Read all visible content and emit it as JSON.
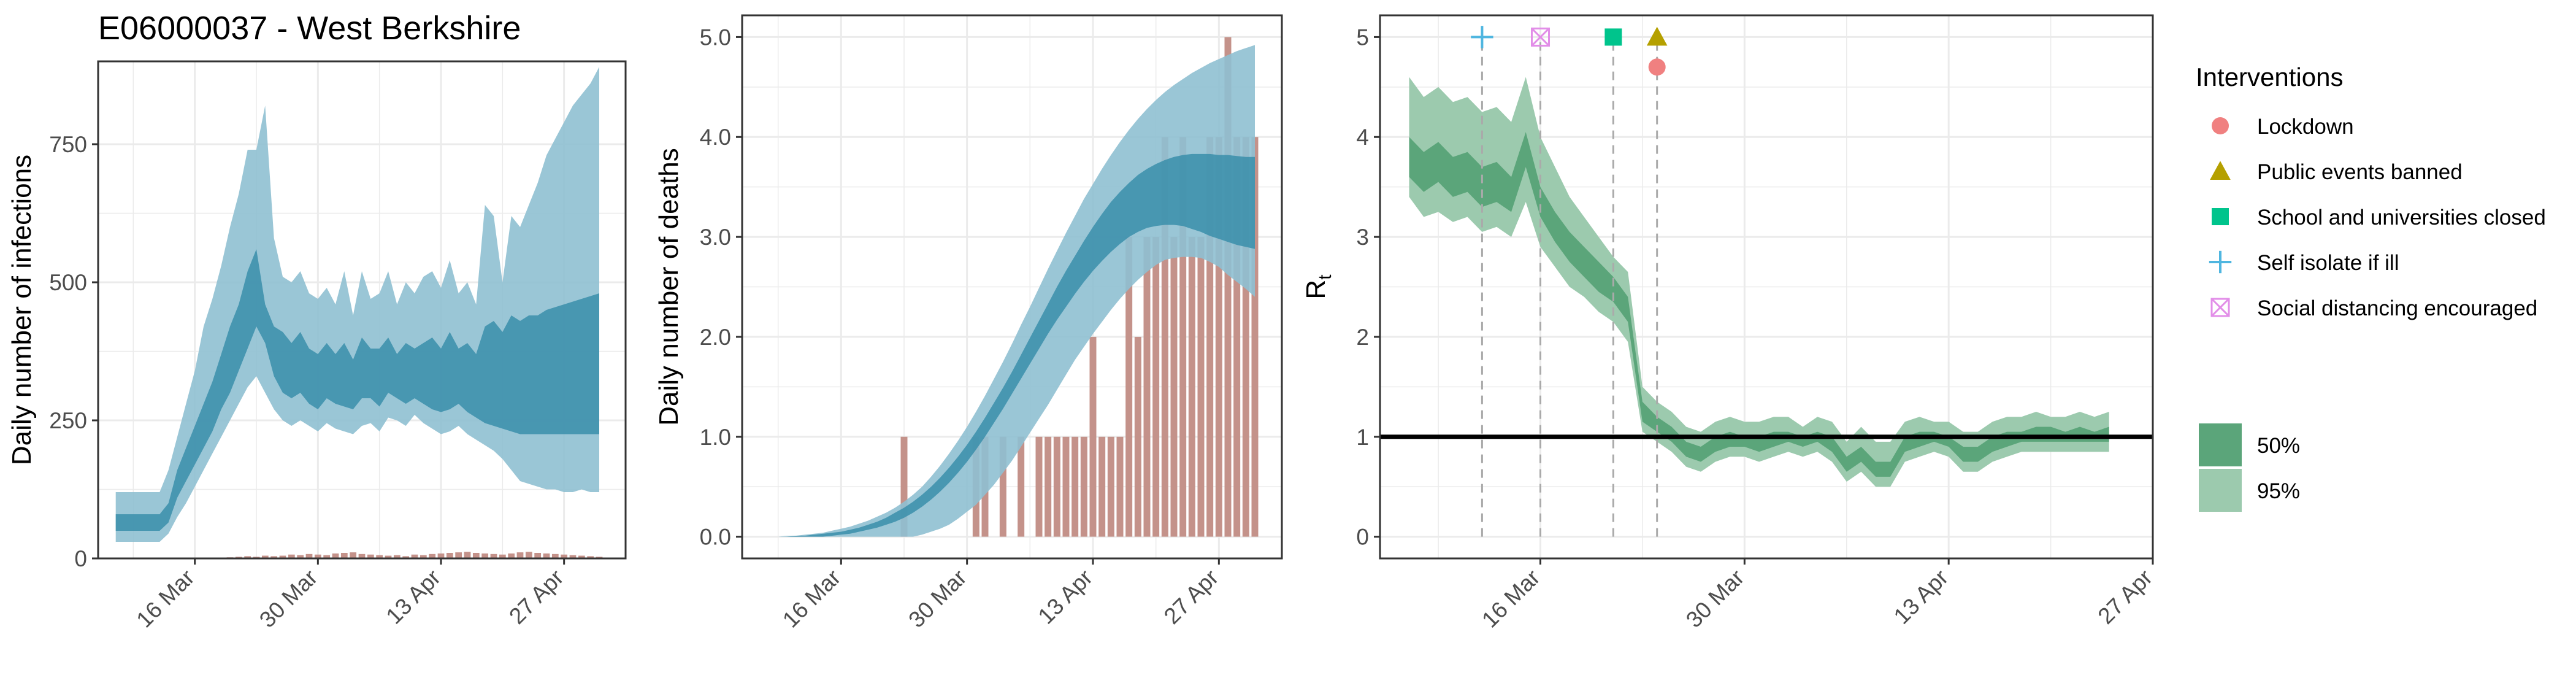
{
  "page": {
    "title": "E06000037 - West Berkshire"
  },
  "colors": {
    "infections_95": "#8fc0d1",
    "infections_50": "#3a8eaa",
    "deaths_95": "#8fc0d1",
    "deaths_50": "#3a8eaa",
    "bars": "#c4928a",
    "rt_95": "#9ccaae",
    "rt_50": "#5ba57a",
    "rt_line": "#000000",
    "vline": "#aaaaaa",
    "grid": "#ebebeb",
    "lockdown": "#f08080",
    "public_events": "#b5a000",
    "schools": "#00c48c",
    "self_isolate": "#4fb6e0",
    "social_distancing": "#e28ee8"
  },
  "chart_data": [
    {
      "type": "area",
      "name": "infections",
      "ylabel": "Daily number of infections",
      "x_start": "2020-03-07",
      "ylim": [
        0,
        900
      ],
      "yticks": [
        0,
        250,
        500,
        750
      ],
      "ytick_labels": [
        "0",
        "250",
        "500",
        "750"
      ],
      "xticks": [
        "2020-03-16",
        "2020-03-30",
        "2020-04-13",
        "2020-04-27"
      ],
      "xtick_labels": [
        "16 Mar",
        "30 Mar",
        "13 Apr",
        "27 Apr"
      ],
      "grid": true,
      "band95": {
        "lower": [
          30,
          30,
          30,
          30,
          30,
          30,
          45,
          75,
          100,
          130,
          160,
          190,
          220,
          250,
          280,
          310,
          330,
          300,
          270,
          250,
          240,
          250,
          240,
          230,
          245,
          235,
          230,
          225,
          240,
          245,
          230,
          255,
          250,
          240,
          260,
          245,
          235,
          225,
          230,
          240,
          225,
          215,
          205,
          195,
          180,
          160,
          140,
          135,
          130,
          125,
          125,
          120,
          120,
          125,
          120,
          120
        ],
        "upper": [
          120,
          120,
          120,
          120,
          120,
          120,
          160,
          220,
          280,
          340,
          420,
          470,
          530,
          600,
          660,
          740,
          740,
          820,
          580,
          510,
          500,
          520,
          480,
          470,
          490,
          460,
          520,
          440,
          520,
          470,
          480,
          520,
          460,
          500,
          480,
          510,
          520,
          490,
          540,
          480,
          500,
          460,
          640,
          620,
          500,
          620,
          600,
          640,
          680,
          730,
          760,
          790,
          820,
          840,
          860,
          890
        ]
      },
      "band50": {
        "lower": [
          50,
          50,
          50,
          50,
          50,
          50,
          65,
          110,
          140,
          170,
          200,
          230,
          270,
          300,
          340,
          380,
          420,
          390,
          330,
          300,
          290,
          300,
          280,
          270,
          290,
          280,
          275,
          270,
          290,
          290,
          275,
          300,
          290,
          280,
          290,
          280,
          270,
          265,
          270,
          280,
          265,
          255,
          245,
          240,
          235,
          230,
          225,
          225,
          225,
          225,
          225,
          225,
          225,
          225,
          225,
          225
        ],
        "upper": [
          80,
          80,
          80,
          80,
          80,
          80,
          100,
          160,
          200,
          240,
          280,
          320,
          370,
          420,
          460,
          520,
          560,
          460,
          420,
          410,
          390,
          410,
          380,
          370,
          390,
          370,
          390,
          360,
          400,
          380,
          380,
          400,
          370,
          390,
          380,
          390,
          400,
          380,
          410,
          380,
          390,
          370,
          420,
          430,
          410,
          440,
          430,
          440,
          440,
          450,
          455,
          460,
          465,
          470,
          475,
          480
        ]
      },
      "bars": [
        0,
        0,
        0,
        0,
        0,
        0,
        0,
        0,
        0,
        0,
        0,
        0,
        0,
        2,
        3,
        4,
        3,
        5,
        4,
        5,
        7,
        6,
        8,
        7,
        6,
        9,
        10,
        11,
        8,
        7,
        6,
        5,
        6,
        4,
        7,
        6,
        8,
        9,
        10,
        11,
        12,
        10,
        9,
        8,
        7,
        9,
        11,
        12,
        10,
        9,
        8,
        7,
        6,
        5,
        4,
        3
      ]
    },
    {
      "type": "area",
      "name": "deaths",
      "ylabel": "Daily number of deaths",
      "x_start": "2020-03-07",
      "ylim": [
        0,
        5
      ],
      "yticks": [
        0,
        1,
        2,
        3,
        4,
        5
      ],
      "ytick_labels": [
        "0.0",
        "1.0",
        "2.0",
        "3.0",
        "4.0",
        "5.0"
      ],
      "xticks": [
        "2020-03-16",
        "2020-03-30",
        "2020-04-13",
        "2020-04-27"
      ],
      "xtick_labels": [
        "16 Mar",
        "30 Mar",
        "13 Apr",
        "27 Apr"
      ],
      "grid": true,
      "band95": {
        "lower": [
          0,
          0,
          0,
          0,
          0,
          0,
          0,
          0,
          0,
          0,
          0,
          0,
          0,
          0,
          0,
          0,
          0,
          0,
          0.02,
          0.05,
          0.08,
          0.12,
          0.18,
          0.25,
          0.32,
          0.42,
          0.52,
          0.64,
          0.76,
          0.9,
          1.04,
          1.18,
          1.32,
          1.47,
          1.62,
          1.77,
          1.9,
          2.03,
          2.15,
          2.27,
          2.38,
          2.48,
          2.57,
          2.65,
          2.72,
          2.77,
          2.79,
          2.8,
          2.8,
          2.79,
          2.75,
          2.7,
          2.62,
          2.55,
          2.48,
          2.4
        ],
        "upper": [
          0,
          0,
          0,
          0.01,
          0.01,
          0.02,
          0.03,
          0.04,
          0.06,
          0.08,
          0.1,
          0.13,
          0.16,
          0.2,
          0.24,
          0.29,
          0.35,
          0.42,
          0.5,
          0.6,
          0.71,
          0.83,
          0.96,
          1.1,
          1.25,
          1.41,
          1.58,
          1.75,
          1.93,
          2.12,
          2.3,
          2.49,
          2.68,
          2.86,
          3.04,
          3.21,
          3.38,
          3.53,
          3.68,
          3.82,
          3.95,
          4.07,
          4.18,
          4.28,
          4.37,
          4.45,
          4.52,
          4.58,
          4.64,
          4.69,
          4.74,
          4.78,
          4.82,
          4.86,
          4.89,
          4.92
        ]
      },
      "band50": {
        "lower": [
          0,
          0,
          0,
          0,
          0,
          0,
          0,
          0,
          0.01,
          0.02,
          0.03,
          0.05,
          0.07,
          0.09,
          0.12,
          0.15,
          0.19,
          0.24,
          0.3,
          0.37,
          0.45,
          0.54,
          0.64,
          0.75,
          0.87,
          1.0,
          1.14,
          1.28,
          1.43,
          1.58,
          1.73,
          1.88,
          2.03,
          2.17,
          2.3,
          2.43,
          2.55,
          2.66,
          2.76,
          2.85,
          2.93,
          3.0,
          3.05,
          3.09,
          3.11,
          3.12,
          3.12,
          3.11,
          3.08,
          3.05,
          3.01,
          2.98,
          2.95,
          2.92,
          2.9,
          2.88
        ],
        "upper": [
          0,
          0,
          0,
          0,
          0.01,
          0.01,
          0.02,
          0.03,
          0.04,
          0.05,
          0.07,
          0.09,
          0.12,
          0.15,
          0.19,
          0.24,
          0.29,
          0.35,
          0.42,
          0.5,
          0.59,
          0.69,
          0.8,
          0.92,
          1.05,
          1.19,
          1.34,
          1.49,
          1.65,
          1.82,
          1.99,
          2.16,
          2.33,
          2.5,
          2.66,
          2.81,
          2.96,
          3.1,
          3.23,
          3.35,
          3.45,
          3.54,
          3.62,
          3.68,
          3.73,
          3.77,
          3.8,
          3.82,
          3.83,
          3.83,
          3.83,
          3.82,
          3.82,
          3.81,
          3.8,
          3.8
        ]
      },
      "bars": [
        0,
        0,
        0,
        0,
        0,
        0,
        0,
        0,
        0,
        0,
        0,
        0,
        0,
        0,
        0,
        0,
        1,
        0,
        0,
        0,
        0,
        0,
        0,
        0,
        1,
        1,
        0,
        1,
        0,
        1,
        0,
        1,
        1,
        1,
        1,
        1,
        1,
        2,
        1,
        1,
        1,
        3,
        2,
        3,
        3,
        4,
        3,
        4,
        3,
        3,
        4,
        4,
        5,
        4,
        4,
        4
      ]
    },
    {
      "type": "area",
      "name": "rt",
      "ylabel": "R",
      "ylabel_sub": "t",
      "x_start": "2020-03-07",
      "ylim": [
        0,
        5
      ],
      "yticks": [
        0,
        1,
        2,
        3,
        4,
        5
      ],
      "ytick_labels": [
        "0",
        "1",
        "2",
        "3",
        "4",
        "5"
      ],
      "xticks": [
        "2020-03-16",
        "2020-03-30",
        "2020-04-13",
        "2020-04-27"
      ],
      "xtick_labels": [
        "16 Mar",
        "30 Mar",
        "13 Apr",
        "27 Apr"
      ],
      "grid": true,
      "hline": 1,
      "band95": {
        "lower": [
          3.4,
          3.2,
          3.25,
          3.15,
          3.2,
          3.05,
          3.1,
          3.0,
          3.35,
          2.9,
          2.7,
          2.5,
          2.4,
          2.25,
          2.15,
          1.95,
          1.05,
          0.95,
          0.85,
          0.7,
          0.65,
          0.75,
          0.8,
          0.8,
          0.75,
          0.8,
          0.85,
          0.8,
          0.85,
          0.75,
          0.55,
          0.65,
          0.5,
          0.5,
          0.75,
          0.8,
          0.85,
          0.8,
          0.65,
          0.65,
          0.75,
          0.8,
          0.85,
          0.85,
          0.85,
          0.85,
          0.85,
          0.85,
          0.85
        ],
        "upper": [
          4.6,
          4.4,
          4.5,
          4.35,
          4.4,
          4.25,
          4.3,
          4.15,
          4.6,
          4.0,
          3.7,
          3.4,
          3.2,
          3.0,
          2.8,
          2.65,
          1.5,
          1.35,
          1.25,
          1.1,
          1.05,
          1.15,
          1.2,
          1.15,
          1.15,
          1.2,
          1.2,
          1.1,
          1.2,
          1.15,
          0.95,
          1.1,
          0.95,
          0.95,
          1.15,
          1.2,
          1.15,
          1.15,
          1.05,
          1.05,
          1.15,
          1.2,
          1.2,
          1.25,
          1.2,
          1.2,
          1.25,
          1.2,
          1.25
        ]
      },
      "band50": {
        "lower": [
          3.6,
          3.45,
          3.55,
          3.4,
          3.45,
          3.3,
          3.35,
          3.25,
          3.7,
          3.2,
          2.95,
          2.75,
          2.6,
          2.45,
          2.35,
          2.15,
          1.15,
          1.05,
          0.95,
          0.8,
          0.75,
          0.85,
          0.9,
          0.9,
          0.85,
          0.9,
          0.95,
          0.9,
          0.95,
          0.85,
          0.65,
          0.75,
          0.6,
          0.6,
          0.85,
          0.9,
          0.95,
          0.9,
          0.75,
          0.75,
          0.85,
          0.9,
          0.95,
          0.95,
          0.95,
          0.95,
          0.95,
          0.95,
          0.95
        ],
        "upper": [
          4.0,
          3.85,
          3.95,
          3.8,
          3.85,
          3.7,
          3.75,
          3.6,
          4.05,
          3.5,
          3.25,
          3.05,
          2.9,
          2.75,
          2.6,
          2.4,
          1.35,
          1.2,
          1.1,
          0.95,
          0.9,
          1.0,
          1.05,
          1.0,
          1.0,
          1.05,
          1.05,
          1.0,
          1.05,
          1.0,
          0.8,
          0.9,
          0.75,
          0.75,
          1.0,
          1.05,
          1.05,
          1.0,
          0.9,
          0.9,
          1.0,
          1.05,
          1.05,
          1.1,
          1.1,
          1.05,
          1.1,
          1.05,
          1.1
        ]
      },
      "interventions": [
        {
          "key": "self_isolate",
          "label": "Self isolate if ill",
          "date": "2020-03-12",
          "y": 5.0,
          "shape": "plus",
          "color_key": "self_isolate"
        },
        {
          "key": "social_distancing",
          "label": "Social distancing encouraged",
          "date": "2020-03-16",
          "y": 5.0,
          "shape": "boxcross",
          "color_key": "social_distancing"
        },
        {
          "key": "schools",
          "label": "School and universities closed",
          "date": "2020-03-21",
          "y": 5.0,
          "shape": "square",
          "color_key": "schools"
        },
        {
          "key": "public_events",
          "label": "Public events banned",
          "date": "2020-03-24",
          "y": 5.0,
          "shape": "triangle",
          "color_key": "public_events"
        },
        {
          "key": "lockdown",
          "label": "Lockdown",
          "date": "2020-03-24",
          "y": 4.7,
          "shape": "circle",
          "color_key": "lockdown"
        }
      ]
    }
  ],
  "legend": {
    "title": "Interventions",
    "items": [
      {
        "label": "Lockdown",
        "shape": "circle",
        "color_key": "lockdown"
      },
      {
        "label": "Public events banned",
        "shape": "triangle",
        "color_key": "public_events"
      },
      {
        "label": "School and universities closed",
        "shape": "square",
        "color_key": "schools"
      },
      {
        "label": "Self isolate if ill",
        "shape": "plus",
        "color_key": "self_isolate"
      },
      {
        "label": "Social distancing encouraged",
        "shape": "boxcross",
        "color_key": "social_distancing"
      }
    ],
    "ci_items": [
      {
        "label": "50%",
        "color_key": "rt_50"
      },
      {
        "label": "95%",
        "color_key": "rt_95"
      }
    ]
  }
}
